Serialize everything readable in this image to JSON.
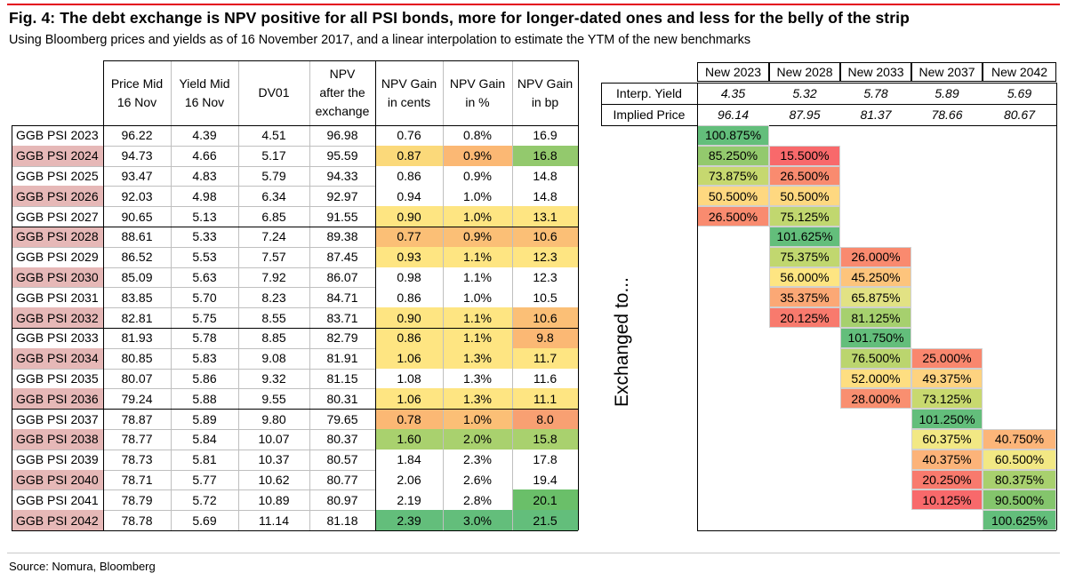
{
  "title": "Fig. 4: The debt exchange is NPV positive for all PSI bonds, more for longer-dated ones and less for the belly of the strip",
  "subtitle": "Using Bloomberg prices and yields as of 16 November 2017, and a linear interpolation to estimate the YTM of the new benchmarks",
  "source": "Source: Nomura, Bloomberg",
  "vertical_label": "Exchanged to...",
  "left_table": {
    "headers": [
      [
        "Price Mid",
        "16 Nov"
      ],
      [
        "Yield Mid",
        "16 Nov"
      ],
      [
        "DV01"
      ],
      [
        "NPV",
        "after the",
        "exchange"
      ],
      [
        "NPV Gain",
        "in cents"
      ],
      [
        "NPV Gain",
        "in %"
      ],
      [
        "NPV Gain",
        "in bp"
      ]
    ],
    "rows": [
      {
        "name": "GGB PSI 2023",
        "price": "96.22",
        "yield": "4.39",
        "dv01": "4.51",
        "npv": "96.98",
        "cents": "0.76",
        "pct": "0.8%",
        "bp": "16.9",
        "pink": false,
        "cols": [
          "#ffffff",
          "#ffffff",
          "#ffffff"
        ]
      },
      {
        "name": "GGB PSI 2024",
        "price": "94.73",
        "yield": "4.66",
        "dv01": "5.17",
        "npv": "95.59",
        "cents": "0.87",
        "pct": "0.9%",
        "bp": "16.8",
        "pink": true,
        "cols": [
          "#fbd97a",
          "#fbb874",
          "#93c96d"
        ]
      },
      {
        "name": "GGB PSI 2025",
        "price": "93.47",
        "yield": "4.83",
        "dv01": "5.79",
        "npv": "94.33",
        "cents": "0.86",
        "pct": "0.9%",
        "bp": "14.8",
        "pink": false,
        "cols": [
          "#ffffff",
          "#ffffff",
          "#ffffff"
        ]
      },
      {
        "name": "GGB PSI 2026",
        "price": "92.03",
        "yield": "4.98",
        "dv01": "6.34",
        "npv": "92.97",
        "cents": "0.94",
        "pct": "1.0%",
        "bp": "14.8",
        "pink": true,
        "cols": [
          "#ffffff",
          "#ffffff",
          "#ffffff"
        ]
      },
      {
        "name": "GGB PSI 2027",
        "price": "90.65",
        "yield": "5.13",
        "dv01": "6.85",
        "npv": "91.55",
        "cents": "0.90",
        "pct": "1.0%",
        "bp": "13.1",
        "pink": false,
        "cols": [
          "#fee582",
          "#fee582",
          "#fee582"
        ]
      },
      {
        "name": "GGB PSI 2028",
        "price": "88.61",
        "yield": "5.33",
        "dv01": "7.24",
        "npv": "89.38",
        "cents": "0.77",
        "pct": "0.9%",
        "bp": "10.6",
        "pink": true,
        "cols": [
          "#fbbf76",
          "#fbbf76",
          "#fbbf76"
        ]
      },
      {
        "name": "GGB PSI 2029",
        "price": "86.52",
        "yield": "5.53",
        "dv01": "7.57",
        "npv": "87.45",
        "cents": "0.93",
        "pct": "1.1%",
        "bp": "12.3",
        "pink": false,
        "cols": [
          "#fee582",
          "#fee582",
          "#fee582"
        ]
      },
      {
        "name": "GGB PSI 2030",
        "price": "85.09",
        "yield": "5.63",
        "dv01": "7.92",
        "npv": "86.07",
        "cents": "0.98",
        "pct": "1.1%",
        "bp": "12.3",
        "pink": true,
        "cols": [
          "#ffffff",
          "#ffffff",
          "#ffffff"
        ]
      },
      {
        "name": "GGB PSI 2031",
        "price": "83.85",
        "yield": "5.70",
        "dv01": "8.23",
        "npv": "84.71",
        "cents": "0.86",
        "pct": "1.0%",
        "bp": "10.5",
        "pink": false,
        "cols": [
          "#ffffff",
          "#ffffff",
          "#ffffff"
        ]
      },
      {
        "name": "GGB PSI 2032",
        "price": "82.81",
        "yield": "5.75",
        "dv01": "8.55",
        "npv": "83.71",
        "cents": "0.90",
        "pct": "1.1%",
        "bp": "10.6",
        "pink": true,
        "cols": [
          "#fee582",
          "#fee582",
          "#fbbf76"
        ]
      },
      {
        "name": "GGB PSI 2033",
        "price": "81.93",
        "yield": "5.78",
        "dv01": "8.85",
        "npv": "82.79",
        "cents": "0.86",
        "pct": "1.1%",
        "bp": "9.8",
        "pink": false,
        "cols": [
          "#fee582",
          "#fee582",
          "#fbb874"
        ]
      },
      {
        "name": "GGB PSI 2034",
        "price": "80.85",
        "yield": "5.83",
        "dv01": "9.08",
        "npv": "81.91",
        "cents": "1.06",
        "pct": "1.3%",
        "bp": "11.7",
        "pink": true,
        "cols": [
          "#fee582",
          "#fee582",
          "#fee582"
        ]
      },
      {
        "name": "GGB PSI 2035",
        "price": "80.07",
        "yield": "5.86",
        "dv01": "9.32",
        "npv": "81.15",
        "cents": "1.08",
        "pct": "1.3%",
        "bp": "11.6",
        "pink": false,
        "cols": [
          "#ffffff",
          "#ffffff",
          "#ffffff"
        ]
      },
      {
        "name": "GGB PSI 2036",
        "price": "79.24",
        "yield": "5.88",
        "dv01": "9.55",
        "npv": "80.31",
        "cents": "1.06",
        "pct": "1.3%",
        "bp": "11.1",
        "pink": true,
        "cols": [
          "#fee582",
          "#fee582",
          "#fee582"
        ]
      },
      {
        "name": "GGB PSI 2037",
        "price": "78.87",
        "yield": "5.89",
        "dv01": "9.80",
        "npv": "79.65",
        "cents": "0.78",
        "pct": "1.0%",
        "bp": "8.0",
        "pink": false,
        "cols": [
          "#fbb874",
          "#fbbf76",
          "#f8a072"
        ]
      },
      {
        "name": "GGB PSI 2038",
        "price": "78.77",
        "yield": "5.84",
        "dv01": "10.07",
        "npv": "80.37",
        "cents": "1.60",
        "pct": "2.0%",
        "bp": "15.8",
        "pink": true,
        "cols": [
          "#a9d16e",
          "#a9d16e",
          "#a9d16e"
        ]
      },
      {
        "name": "GGB PSI 2039",
        "price": "78.73",
        "yield": "5.81",
        "dv01": "10.37",
        "npv": "80.57",
        "cents": "1.84",
        "pct": "2.3%",
        "bp": "17.8",
        "pink": false,
        "cols": [
          "#ffffff",
          "#ffffff",
          "#ffffff"
        ]
      },
      {
        "name": "GGB PSI 2040",
        "price": "78.71",
        "yield": "5.77",
        "dv01": "10.62",
        "npv": "80.77",
        "cents": "2.06",
        "pct": "2.6%",
        "bp": "19.4",
        "pink": true,
        "cols": [
          "#ffffff",
          "#ffffff",
          "#ffffff"
        ]
      },
      {
        "name": "GGB PSI 2041",
        "price": "78.79",
        "yield": "5.72",
        "dv01": "10.89",
        "npv": "80.97",
        "cents": "2.19",
        "pct": "2.8%",
        "bp": "20.1",
        "pink": false,
        "cols": [
          "#ffffff",
          "#ffffff",
          "#6abf69"
        ]
      },
      {
        "name": "GGB PSI 2042",
        "price": "78.78",
        "yield": "5.69",
        "dv01": "11.14",
        "npv": "81.18",
        "cents": "2.39",
        "pct": "3.0%",
        "bp": "21.5",
        "pink": true,
        "cols": [
          "#63be7b",
          "#63be7b",
          "#63be7b"
        ]
      }
    ]
  },
  "right_table": {
    "headers": [
      "New 2023",
      "New 2028",
      "New 2033",
      "New 2037",
      "New 2042"
    ],
    "interp_label": "Interp. Yield",
    "interp_values": [
      "4.35",
      "5.32",
      "5.78",
      "5.89",
      "5.69"
    ],
    "price_label": "Implied Price",
    "price_values": [
      "96.14",
      "87.95",
      "81.37",
      "78.66",
      "80.67"
    ],
    "cells": [
      {
        "row": 0,
        "col": 0,
        "text": "100.875%",
        "color": "#63be7b"
      },
      {
        "row": 1,
        "col": 0,
        "text": "85.250%",
        "color": "#93c96d"
      },
      {
        "row": 1,
        "col": 1,
        "text": "15.500%",
        "color": "#f8696b"
      },
      {
        "row": 2,
        "col": 0,
        "text": "73.875%",
        "color": "#c6d86f"
      },
      {
        "row": 2,
        "col": 1,
        "text": "26.500%",
        "color": "#f98b6f"
      },
      {
        "row": 3,
        "col": 0,
        "text": "50.500%",
        "color": "#fed880"
      },
      {
        "row": 3,
        "col": 1,
        "text": "50.500%",
        "color": "#fed880"
      },
      {
        "row": 4,
        "col": 0,
        "text": "26.500%",
        "color": "#f98b6f"
      },
      {
        "row": 4,
        "col": 1,
        "text": "75.125%",
        "color": "#c1d76f"
      },
      {
        "row": 5,
        "col": 1,
        "text": "101.625%",
        "color": "#63be7b"
      },
      {
        "row": 6,
        "col": 1,
        "text": "75.375%",
        "color": "#c1d76f"
      },
      {
        "row": 6,
        "col": 2,
        "text": "26.000%",
        "color": "#f98a6f"
      },
      {
        "row": 7,
        "col": 1,
        "text": "56.000%",
        "color": "#fee582"
      },
      {
        "row": 7,
        "col": 2,
        "text": "45.250%",
        "color": "#fdc47c"
      },
      {
        "row": 8,
        "col": 1,
        "text": "35.375%",
        "color": "#fba875"
      },
      {
        "row": 8,
        "col": 2,
        "text": "65.875%",
        "color": "#e2e284"
      },
      {
        "row": 9,
        "col": 1,
        "text": "20.125%",
        "color": "#f87a6d"
      },
      {
        "row": 9,
        "col": 2,
        "text": "81.125%",
        "color": "#a6d06e"
      },
      {
        "row": 10,
        "col": 2,
        "text": "101.750%",
        "color": "#63be7b"
      },
      {
        "row": 11,
        "col": 2,
        "text": "76.500%",
        "color": "#bbd56e"
      },
      {
        "row": 11,
        "col": 3,
        "text": "25.000%",
        "color": "#f9876e"
      },
      {
        "row": 12,
        "col": 2,
        "text": "52.000%",
        "color": "#fede81"
      },
      {
        "row": 12,
        "col": 3,
        "text": "49.375%",
        "color": "#fed380"
      },
      {
        "row": 13,
        "col": 2,
        "text": "28.000%",
        "color": "#f98f70"
      },
      {
        "row": 13,
        "col": 3,
        "text": "73.125%",
        "color": "#c8d96f"
      },
      {
        "row": 14,
        "col": 3,
        "text": "101.250%",
        "color": "#63be7b"
      },
      {
        "row": 15,
        "col": 3,
        "text": "60.375%",
        "color": "#f2e884"
      },
      {
        "row": 15,
        "col": 4,
        "text": "40.750%",
        "color": "#fcb579"
      },
      {
        "row": 16,
        "col": 3,
        "text": "40.375%",
        "color": "#fcb379"
      },
      {
        "row": 16,
        "col": 4,
        "text": "60.500%",
        "color": "#f2e884"
      },
      {
        "row": 17,
        "col": 3,
        "text": "20.250%",
        "color": "#f87a6d"
      },
      {
        "row": 17,
        "col": 4,
        "text": "80.375%",
        "color": "#a8d06e"
      },
      {
        "row": 18,
        "col": 3,
        "text": "10.125%",
        "color": "#f8696b"
      },
      {
        "row": 18,
        "col": 4,
        "text": "90.500%",
        "color": "#84c56c"
      },
      {
        "row": 19,
        "col": 4,
        "text": "100.625%",
        "color": "#63be7b"
      }
    ]
  },
  "colors": {
    "accent_red": "#e3001b",
    "pink_row_label": "#e6b8b7"
  }
}
